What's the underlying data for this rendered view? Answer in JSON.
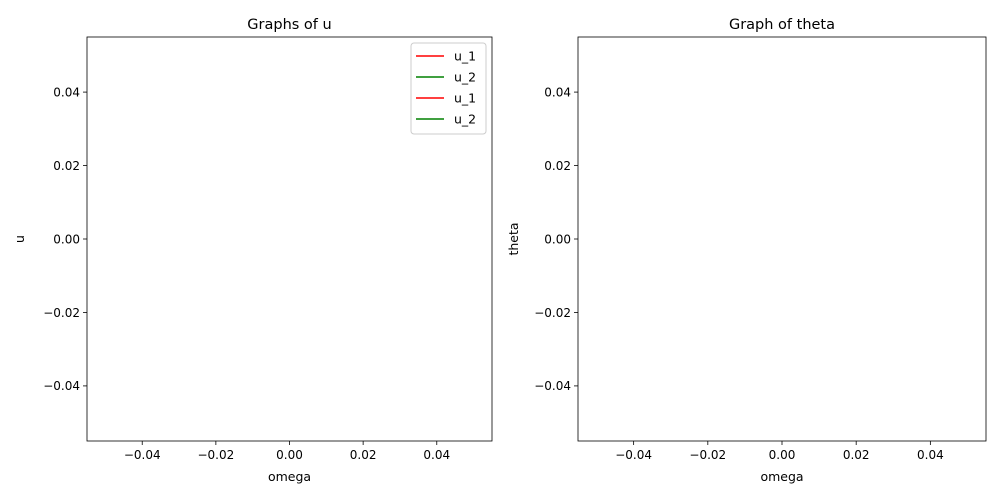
{
  "chart_data": [
    {
      "type": "line",
      "title": "Graphs of u",
      "xlabel": "omega",
      "ylabel": "u",
      "xlim": [
        -0.055,
        0.055
      ],
      "ylim": [
        -0.055,
        0.055
      ],
      "xticks": [
        -0.04,
        -0.02,
        0.0,
        0.02,
        0.04
      ],
      "yticks": [
        -0.04,
        -0.02,
        0.0,
        0.02,
        0.04
      ],
      "xtick_labels": [
        "−0.04",
        "−0.02",
        "0.00",
        "0.02",
        "0.04"
      ],
      "ytick_labels": [
        "−0.04",
        "−0.02",
        "0.00",
        "0.02",
        "0.04"
      ],
      "legend_position": "top-right",
      "series": [
        {
          "name": "u_1",
          "color": "#ff0000",
          "x": [],
          "y": []
        },
        {
          "name": "u_2",
          "color": "#008000",
          "x": [],
          "y": []
        },
        {
          "name": "u_1",
          "color": "#ff0000",
          "x": [],
          "y": []
        },
        {
          "name": "u_2",
          "color": "#008000",
          "x": [],
          "y": []
        }
      ]
    },
    {
      "type": "line",
      "title": "Graph of theta",
      "xlabel": "omega",
      "ylabel": "theta",
      "xlim": [
        -0.055,
        0.055
      ],
      "ylim": [
        -0.055,
        0.055
      ],
      "xticks": [
        -0.04,
        -0.02,
        0.0,
        0.02,
        0.04
      ],
      "yticks": [
        -0.04,
        -0.02,
        0.0,
        0.02,
        0.04
      ],
      "xtick_labels": [
        "−0.04",
        "−0.02",
        "0.00",
        "0.02",
        "0.04"
      ],
      "ytick_labels": [
        "−0.04",
        "−0.02",
        "0.00",
        "0.02",
        "0.04"
      ],
      "series": []
    }
  ]
}
